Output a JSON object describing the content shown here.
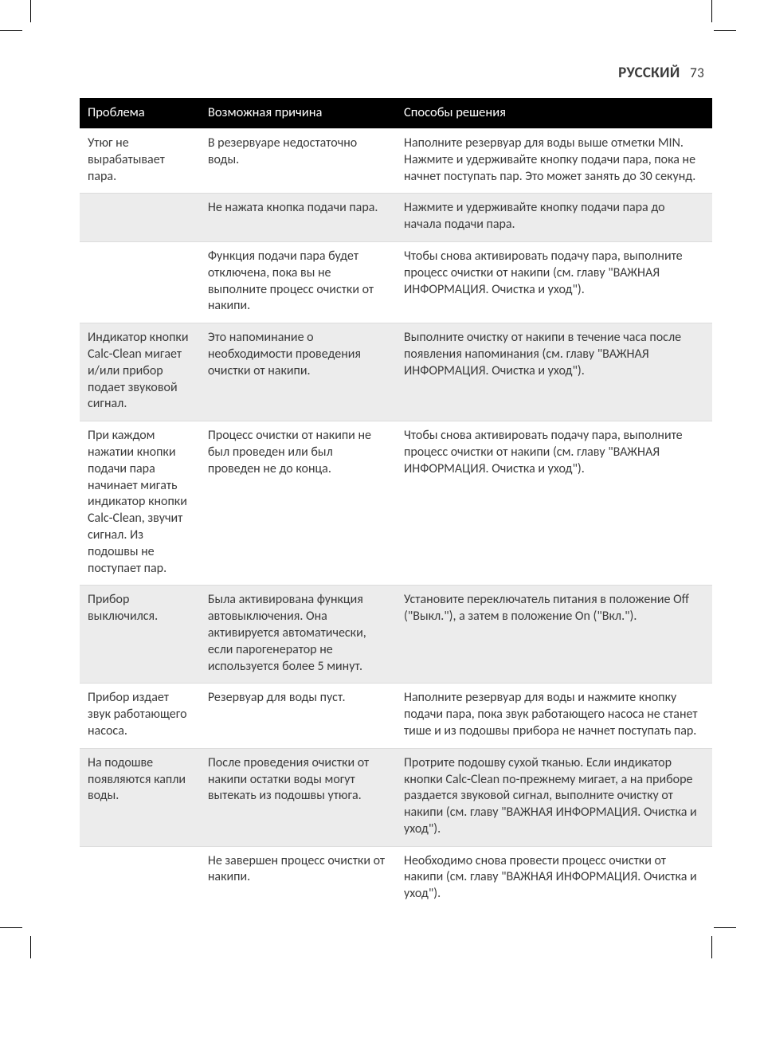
{
  "header": {
    "language": "РУССКИЙ",
    "page_number": "73"
  },
  "colors": {
    "header_bg": "#000000",
    "header_fg": "#ffffff",
    "row_alt_bg": "#ececec",
    "border": "#dcdcdc",
    "text": "#3b3b3b",
    "page_bg": "#ffffff"
  },
  "typography": {
    "font_family": "Gill Sans",
    "header_font_size_pt": 14,
    "body_font_size_pt": 12,
    "line_height": 1.3
  },
  "column_widths_pct": [
    19,
    31,
    50
  ],
  "table": {
    "columns": [
      "Проблема",
      "Возможная причина",
      "Способы решения"
    ],
    "groups": [
      {
        "alt": false,
        "rows": [
          {
            "problem": "Утюг не вырабатывает пара.",
            "cause": "В резервуаре недостаточно воды.",
            "solution": "Наполните резервуар для воды выше отметки MIN. Нажмите и удерживайте кнопку подачи пара, пока не начнет поступать пар. Это может занять до 30 секунд."
          }
        ]
      },
      {
        "alt": true,
        "rows": [
          {
            "problem": "",
            "cause": "Не нажата кнопка подачи пара.",
            "solution": "Нажмите и удерживайте кнопку подачи пара до начала подачи пара."
          }
        ]
      },
      {
        "alt": false,
        "rows": [
          {
            "problem": "",
            "cause": "Функция подачи пара будет отключена, пока вы не выполните процесс очистки от накипи.",
            "solution": "Чтобы снова активировать подачу пара, выполните процесс очистки от накипи (см. главу \"ВАЖНАЯ ИНФОРМАЦИЯ. Очистка и уход\")."
          }
        ]
      },
      {
        "alt": true,
        "rows": [
          {
            "problem": "Индикатор кнопки Calc-Clean мигает и/или прибор подает звуковой сигнал.",
            "cause": "Это напоминание о необходимости проведения очистки от накипи.",
            "solution": "Выполните очистку от накипи в течение часа после появления напоминания (см. главу \"ВАЖНАЯ ИНФОРМАЦИЯ. Очистка и уход\")."
          }
        ]
      },
      {
        "alt": false,
        "rows": [
          {
            "problem": "При каждом нажатии кнопки подачи пара начинает мигать индикатор кнопки Calc-Clean, звучит сигнал. Из подошвы не поступает пар.",
            "cause": "Процесс очистки от накипи не был проведен или был проведен не до конца.",
            "solution": "Чтобы снова активировать подачу пара, выполните процесс очистки от накипи (см. главу \"ВАЖНАЯ ИНФОРМАЦИЯ. Очистка и уход\")."
          }
        ]
      },
      {
        "alt": true,
        "rows": [
          {
            "problem": "Прибор выключился.",
            "cause": "Была активирована функция автовыключения. Она активируется автоматически, если парогенератор не используется более 5 минут.",
            "solution": "Установите переключатель питания в положение Off (\"Выкл.\"), а затем в положение On (\"Вкл.\")."
          }
        ]
      },
      {
        "alt": false,
        "rows": [
          {
            "problem": "Прибор издает звук работающего насоса.",
            "cause": "Резервуар для воды пуст.",
            "solution": "Наполните резервуар для воды и нажмите кнопку подачи пара, пока звук работающего насоса не станет тише и из подошвы прибора не начнет поступать пар."
          }
        ]
      },
      {
        "alt": true,
        "rows": [
          {
            "problem": "На подошве появляются капли воды.",
            "cause": "После проведения очистки от накипи остатки воды могут вытекать из подошвы утюга.",
            "solution": "Протрите подошву сухой тканью. Если индикатор кнопки Calc-Clean по-прежнему мигает, а на приборе раздается звуковой сигнал, выполните очистку от накипи (см. главу \"ВАЖНАЯ ИНФОРМАЦИЯ. Очистка и уход\")."
          }
        ]
      },
      {
        "alt": false,
        "rows": [
          {
            "problem": "",
            "cause": "Не завершен процесс очистки от накипи.",
            "solution": "Необходимо снова провести процесс очистки от накипи (см. главу \"ВАЖНАЯ ИНФОРМАЦИЯ. Очистка и уход\")."
          }
        ]
      }
    ]
  }
}
